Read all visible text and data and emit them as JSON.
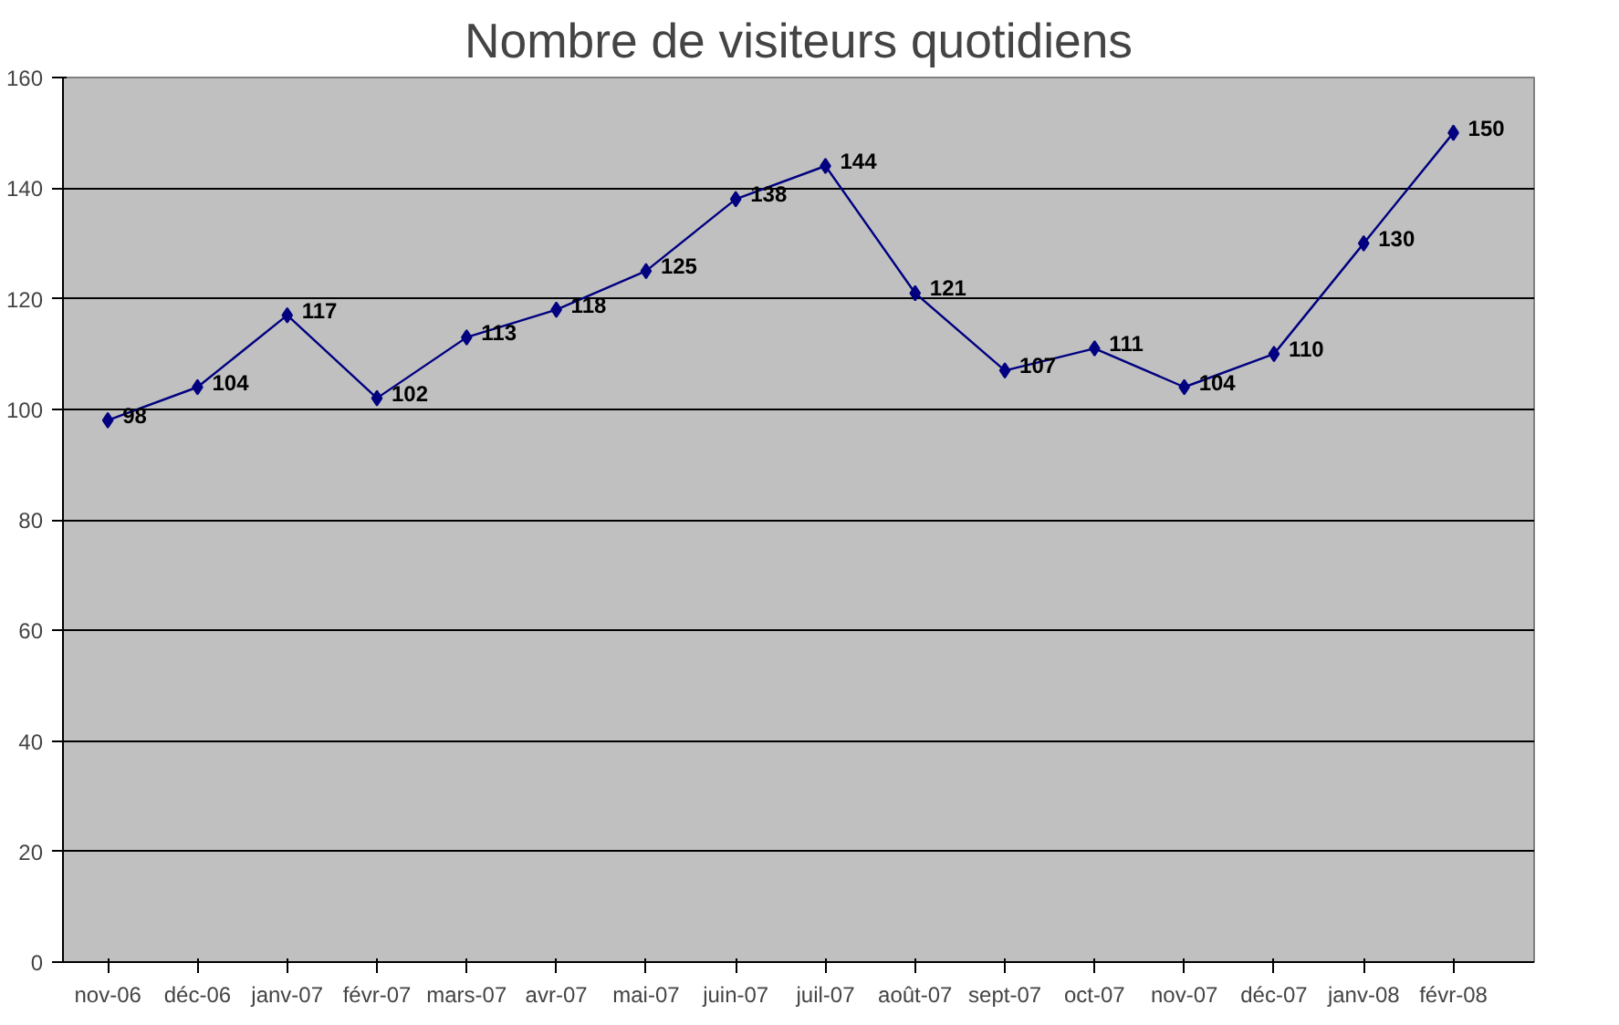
{
  "chart_data": {
    "type": "line",
    "title": "Nombre de visiteurs quotidiens",
    "categories": [
      "nov-06",
      "déc-06",
      "janv-07",
      "févr-07",
      "mars-07",
      "avr-07",
      "mai-07",
      "juin-07",
      "juil-07",
      "août-07",
      "sept-07",
      "oct-07",
      "nov-07",
      "déc-07",
      "janv-08",
      "févr-08"
    ],
    "series": [
      {
        "color": "#000080",
        "values": [
          98,
          104,
          117,
          102,
          113,
          118,
          125,
          138,
          144,
          121,
          107,
          111,
          104,
          110,
          130,
          150
        ]
      }
    ],
    "ylim": [
      0,
      160
    ],
    "yticks": [
      0,
      20,
      40,
      60,
      80,
      100,
      120,
      140,
      160
    ],
    "grid": "y",
    "marker": "diamond",
    "line_style": "solid",
    "data_labels": true
  }
}
